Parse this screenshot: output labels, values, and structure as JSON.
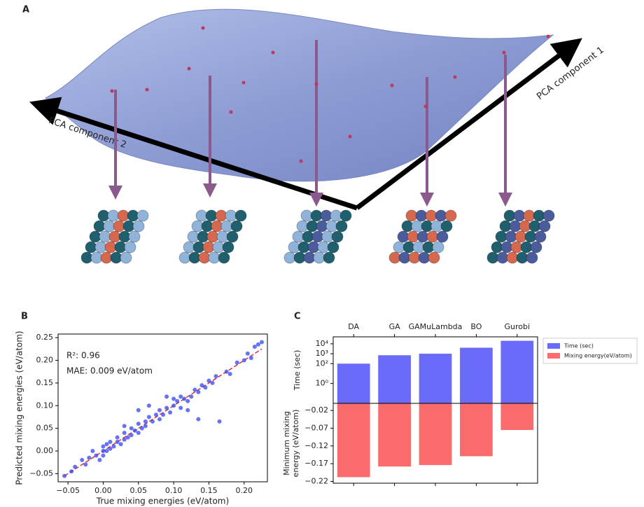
{
  "illustration": {
    "panel_label": "A",
    "axis_labels": [
      "PCA component 1",
      "PCA component 2"
    ]
  },
  "chart_data": [
    {
      "type": "scatter",
      "panel_label": "B",
      "xlabel": "True mixing energies (eV/atom)",
      "ylabel": "Predicted mixing energies (eV/atom)",
      "annotations": [
        "R²: 0.96",
        "MAE: 0.009 eV/atom"
      ],
      "color": "#3344ee",
      "identity_line_color": "#e03030",
      "x": [
        -0.055,
        -0.045,
        -0.04,
        -0.03,
        -0.025,
        -0.02,
        -0.01,
        -0.005,
        0.0,
        0.0,
        0.005,
        0.005,
        0.01,
        0.01,
        0.015,
        0.02,
        0.02,
        0.025,
        0.03,
        0.03,
        0.035,
        0.04,
        0.04,
        0.045,
        0.05,
        0.05,
        0.055,
        0.06,
        0.06,
        0.065,
        0.07,
        0.075,
        0.08,
        0.08,
        0.085,
        0.09,
        0.095,
        0.1,
        0.1,
        0.105,
        0.11,
        0.11,
        0.115,
        0.12,
        0.125,
        0.13,
        0.135,
        0.14,
        0.145,
        0.15,
        0.155,
        0.16,
        0.165,
        0.135,
        0.12,
        0.065,
        0.05,
        0.09,
        0.175,
        0.18,
        0.19,
        0.2,
        0.205,
        0.21,
        0.215,
        0.22,
        0.225,
        0.03,
        -0.015,
        0.0
      ],
      "y": [
        -0.055,
        -0.045,
        -0.035,
        -0.02,
        -0.03,
        -0.015,
        -0.01,
        -0.02,
        0.0,
        0.01,
        0.0,
        0.015,
        0.005,
        0.02,
        0.01,
        0.02,
        0.03,
        0.015,
        0.025,
        0.04,
        0.03,
        0.035,
        0.05,
        0.045,
        0.04,
        0.06,
        0.05,
        0.065,
        0.055,
        0.075,
        0.065,
        0.08,
        0.07,
        0.09,
        0.08,
        0.095,
        0.085,
        0.1,
        0.115,
        0.11,
        0.095,
        0.12,
        0.115,
        0.11,
        0.12,
        0.135,
        0.13,
        0.145,
        0.14,
        0.155,
        0.15,
        0.165,
        0.065,
        0.07,
        0.09,
        0.1,
        0.09,
        0.12,
        0.175,
        0.17,
        0.195,
        0.2,
        0.215,
        0.205,
        0.23,
        0.235,
        0.24,
        0.055,
        0.0,
        -0.01
      ],
      "xlim": [
        -0.064,
        0.233
      ],
      "ylim": [
        -0.068,
        0.258
      ],
      "xticks": [
        {
          "value": -0.05,
          "label": "−0.05"
        },
        {
          "value": 0,
          "label": "0.00"
        },
        {
          "value": 0.05,
          "label": "0.05"
        },
        {
          "value": 0.1,
          "label": "0.10"
        },
        {
          "value": 0.15,
          "label": "0.15"
        },
        {
          "value": 0.2,
          "label": "0.20"
        }
      ],
      "yticks": [
        {
          "value": -0.05,
          "label": "−0.05"
        },
        {
          "value": 0,
          "label": "0.00"
        },
        {
          "value": 0.05,
          "label": "0.05"
        },
        {
          "value": 0.1,
          "label": "0.10"
        },
        {
          "value": 0.15,
          "label": "0.15"
        },
        {
          "value": 0.2,
          "label": "0.20"
        },
        {
          "value": 0.25,
          "label": "0.25"
        }
      ]
    },
    {
      "type": "bar",
      "panel_label": "C",
      "categories": [
        "DA",
        "GA",
        "GAMuLambda",
        "BO",
        "Gurobi"
      ],
      "ylabel": "Time (sec)",
      "y2label": [
        "Minimum mixing",
        "energy (eV/atom)"
      ],
      "yscale": "log",
      "ylim": [
        0.01,
        50000
      ],
      "yticks": [
        {
          "value": 10000,
          "label": "10⁴"
        },
        {
          "value": 1000,
          "label": "10³"
        },
        {
          "value": 100,
          "label": "10²"
        },
        {
          "value": 1,
          "label": "10⁰"
        }
      ],
      "y2lim": [
        -0.225,
        0
      ],
      "y2ticks": [
        {
          "value": -0.02,
          "label": "−0.02"
        },
        {
          "value": -0.07,
          "label": "−0.07"
        },
        {
          "value": -0.12,
          "label": "−0.12"
        },
        {
          "value": -0.17,
          "label": "−0.17"
        },
        {
          "value": -0.22,
          "label": "−0.22"
        }
      ],
      "legend": "outside right",
      "series": [
        {
          "name": "Time (sec)",
          "color": "#6b6bfa",
          "values": [
            100,
            700,
            1000,
            4000,
            20000
          ]
        },
        {
          "name": "Mixing energy(eV/atom)",
          "color": "#fa6b6b",
          "axis": "y2",
          "values": [
            -0.208,
            -0.178,
            -0.174,
            -0.149,
            -0.075
          ]
        }
      ]
    }
  ]
}
